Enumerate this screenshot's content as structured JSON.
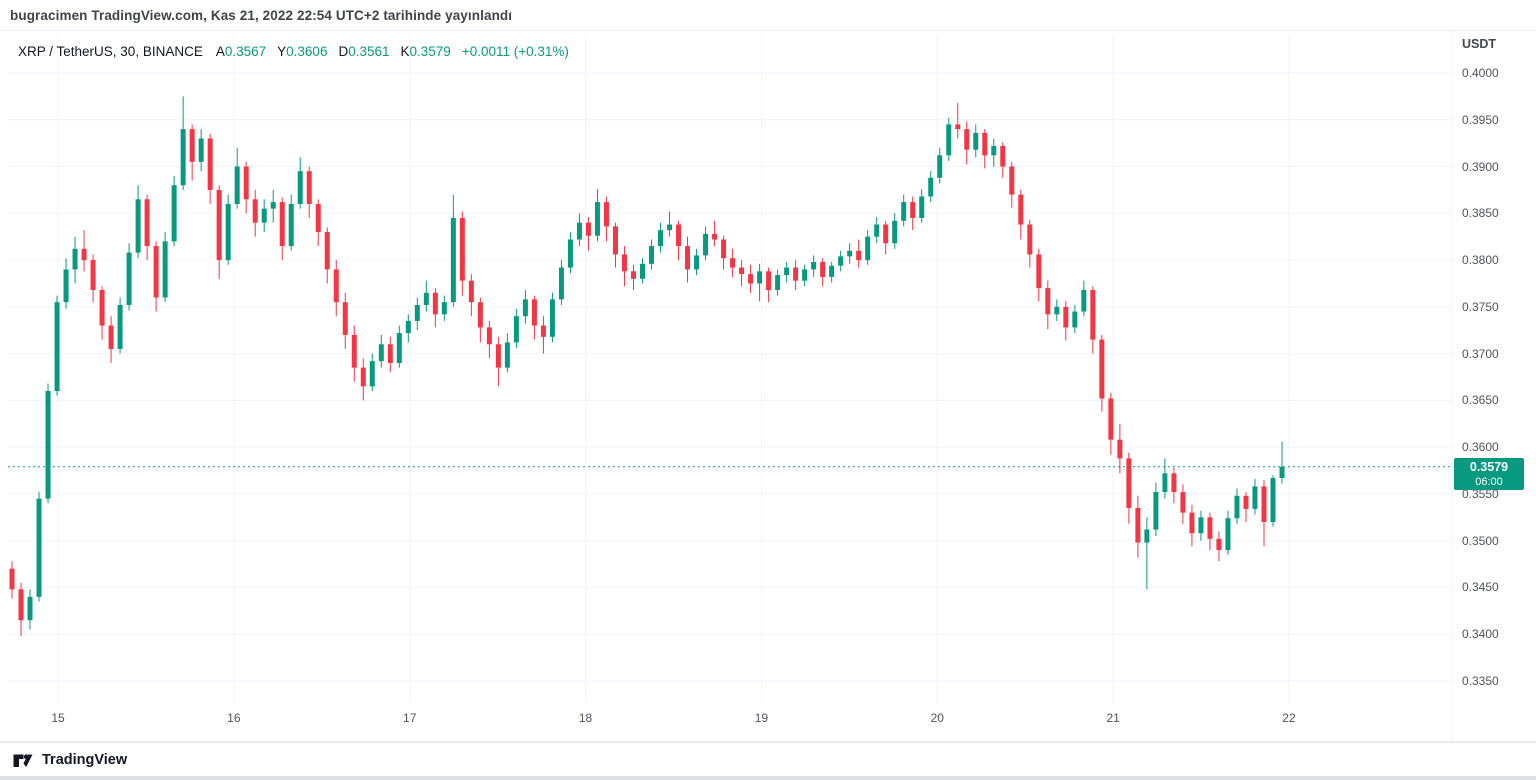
{
  "header": {
    "byline": "bugracimen TradingView.com, Kas 21, 2022 22:54 UTC+2 tarihinde yayınlandı"
  },
  "legend": {
    "symbol_title": "XRP / TetherUS, 30, BINANCE",
    "ohlc": [
      {
        "label": "A",
        "value": "0.3567"
      },
      {
        "label": "Y",
        "value": "0.3606"
      },
      {
        "label": "D",
        "value": "0.3561"
      },
      {
        "label": "K",
        "value": "0.3579"
      }
    ],
    "change": "+0.0011 (+0.31%)"
  },
  "price_scale": {
    "currency_label": "USDT",
    "labels": [
      "0.4000",
      "0.3950",
      "0.3900",
      "0.3850",
      "0.3800",
      "0.3750",
      "0.3700",
      "0.3650",
      "0.3600",
      "0.3550",
      "0.3500",
      "0.3450",
      "0.3400",
      "0.3350"
    ],
    "last_price_badge": {
      "price": "0.3579",
      "countdown": "06:00"
    }
  },
  "footer": {
    "brand": "TradingView"
  },
  "colors": {
    "up": "#089981",
    "down": "#f23645",
    "grid": "#f0f3fa",
    "axis_text": "#50535e",
    "text": "#131722",
    "badge_bg": "#089981"
  },
  "chart_data": {
    "type": "candlestick",
    "title": "XRP / TetherUS, 30, BINANCE",
    "symbol": "XRP/USDT",
    "interval": "30",
    "exchange": "BINANCE",
    "quote_currency": "USDT",
    "price_axis": {
      "min": 0.335,
      "max": 0.4,
      "step": 0.005
    },
    "x_labels": [
      "15",
      "16",
      "17",
      "18",
      "19",
      "20",
      "21",
      "22"
    ],
    "last_price": 0.3579,
    "grid": true,
    "candles": [
      [
        0.347,
        0.3478,
        0.3438,
        0.3448
      ],
      [
        0.3448,
        0.3455,
        0.3398,
        0.3415
      ],
      [
        0.3415,
        0.3448,
        0.3405,
        0.344
      ],
      [
        0.344,
        0.3552,
        0.3435,
        0.3545
      ],
      [
        0.3545,
        0.3668,
        0.354,
        0.366
      ],
      [
        0.366,
        0.3762,
        0.3655,
        0.3755
      ],
      [
        0.3755,
        0.3802,
        0.3748,
        0.379
      ],
      [
        0.379,
        0.3825,
        0.3775,
        0.3812
      ],
      [
        0.3812,
        0.3832,
        0.3788,
        0.38
      ],
      [
        0.38,
        0.3806,
        0.3755,
        0.3768
      ],
      [
        0.3768,
        0.3772,
        0.3715,
        0.373
      ],
      [
        0.373,
        0.374,
        0.369,
        0.3705
      ],
      [
        0.3705,
        0.376,
        0.37,
        0.3752
      ],
      [
        0.3752,
        0.3818,
        0.3746,
        0.3808
      ],
      [
        0.3808,
        0.388,
        0.3802,
        0.3865
      ],
      [
        0.3865,
        0.387,
        0.38,
        0.3815
      ],
      [
        0.3815,
        0.382,
        0.3745,
        0.376
      ],
      [
        0.376,
        0.383,
        0.3755,
        0.382
      ],
      [
        0.382,
        0.389,
        0.3815,
        0.388
      ],
      [
        0.388,
        0.3975,
        0.3875,
        0.394
      ],
      [
        0.394,
        0.3945,
        0.3885,
        0.3905
      ],
      [
        0.3905,
        0.394,
        0.3895,
        0.393
      ],
      [
        0.393,
        0.3935,
        0.386,
        0.3875
      ],
      [
        0.3875,
        0.388,
        0.378,
        0.38
      ],
      [
        0.38,
        0.387,
        0.3795,
        0.386
      ],
      [
        0.386,
        0.392,
        0.3855,
        0.39
      ],
      [
        0.39,
        0.3905,
        0.385,
        0.3865
      ],
      [
        0.3865,
        0.3875,
        0.3825,
        0.384
      ],
      [
        0.384,
        0.3865,
        0.383,
        0.3855
      ],
      [
        0.3855,
        0.3875,
        0.384,
        0.3862
      ],
      [
        0.3862,
        0.3867,
        0.38,
        0.3815
      ],
      [
        0.3815,
        0.387,
        0.381,
        0.386
      ],
      [
        0.386,
        0.391,
        0.3855,
        0.3895
      ],
      [
        0.3895,
        0.39,
        0.3845,
        0.386
      ],
      [
        0.386,
        0.3865,
        0.3815,
        0.383
      ],
      [
        0.383,
        0.3835,
        0.3775,
        0.379
      ],
      [
        0.379,
        0.38,
        0.374,
        0.3755
      ],
      [
        0.3755,
        0.3765,
        0.3705,
        0.372
      ],
      [
        0.372,
        0.373,
        0.367,
        0.3685
      ],
      [
        0.3685,
        0.3695,
        0.365,
        0.3665
      ],
      [
        0.3665,
        0.37,
        0.366,
        0.3692
      ],
      [
        0.3692,
        0.372,
        0.3685,
        0.371
      ],
      [
        0.371,
        0.3718,
        0.368,
        0.369
      ],
      [
        0.369,
        0.373,
        0.3685,
        0.3722
      ],
      [
        0.3722,
        0.3742,
        0.3712,
        0.3735
      ],
      [
        0.3735,
        0.376,
        0.3725,
        0.3752
      ],
      [
        0.3752,
        0.3778,
        0.3745,
        0.3765
      ],
      [
        0.3765,
        0.377,
        0.3728,
        0.3742
      ],
      [
        0.3742,
        0.3762,
        0.3735,
        0.3755
      ],
      [
        0.3755,
        0.387,
        0.375,
        0.3845
      ],
      [
        0.3845,
        0.3852,
        0.3762,
        0.3778
      ],
      [
        0.3778,
        0.3785,
        0.374,
        0.3755
      ],
      [
        0.3755,
        0.376,
        0.3712,
        0.3728
      ],
      [
        0.3728,
        0.3735,
        0.3695,
        0.371
      ],
      [
        0.371,
        0.3718,
        0.3665,
        0.3685
      ],
      [
        0.3685,
        0.3722,
        0.368,
        0.3712
      ],
      [
        0.3712,
        0.3748,
        0.3706,
        0.374
      ],
      [
        0.374,
        0.3768,
        0.3732,
        0.3758
      ],
      [
        0.3758,
        0.3762,
        0.3715,
        0.373
      ],
      [
        0.373,
        0.374,
        0.37,
        0.3718
      ],
      [
        0.3718,
        0.3765,
        0.3712,
        0.3758
      ],
      [
        0.3758,
        0.38,
        0.3752,
        0.3792
      ],
      [
        0.3792,
        0.383,
        0.3786,
        0.3822
      ],
      [
        0.3822,
        0.385,
        0.3815,
        0.384
      ],
      [
        0.384,
        0.3846,
        0.381,
        0.3826
      ],
      [
        0.3826,
        0.3876,
        0.382,
        0.3862
      ],
      [
        0.3862,
        0.3868,
        0.382,
        0.3836
      ],
      [
        0.3836,
        0.384,
        0.3792,
        0.3806
      ],
      [
        0.3806,
        0.3815,
        0.3772,
        0.3788
      ],
      [
        0.3788,
        0.3795,
        0.3768,
        0.378
      ],
      [
        0.378,
        0.3802,
        0.3775,
        0.3796
      ],
      [
        0.3796,
        0.3822,
        0.379,
        0.3815
      ],
      [
        0.3815,
        0.384,
        0.3808,
        0.3832
      ],
      [
        0.3832,
        0.3852,
        0.3825,
        0.3838
      ],
      [
        0.3838,
        0.3842,
        0.38,
        0.3815
      ],
      [
        0.3815,
        0.3825,
        0.3776,
        0.379
      ],
      [
        0.379,
        0.3812,
        0.3784,
        0.3805
      ],
      [
        0.3805,
        0.3836,
        0.38,
        0.3828
      ],
      [
        0.3828,
        0.3842,
        0.3815,
        0.3822
      ],
      [
        0.3822,
        0.3826,
        0.379,
        0.3802
      ],
      [
        0.3802,
        0.3812,
        0.3782,
        0.3792
      ],
      [
        0.3792,
        0.38,
        0.3772,
        0.3785
      ],
      [
        0.3785,
        0.3795,
        0.3765,
        0.3775
      ],
      [
        0.3775,
        0.3796,
        0.3756,
        0.3788
      ],
      [
        0.3788,
        0.3792,
        0.3755,
        0.3768
      ],
      [
        0.3768,
        0.379,
        0.3762,
        0.3784
      ],
      [
        0.3784,
        0.3798,
        0.3776,
        0.3792
      ],
      [
        0.3792,
        0.38,
        0.3768,
        0.3778
      ],
      [
        0.3778,
        0.3795,
        0.3772,
        0.379
      ],
      [
        0.379,
        0.3805,
        0.3782,
        0.3798
      ],
      [
        0.3798,
        0.3802,
        0.3772,
        0.3782
      ],
      [
        0.3782,
        0.3798,
        0.3776,
        0.3794
      ],
      [
        0.3794,
        0.381,
        0.3788,
        0.3804
      ],
      [
        0.3804,
        0.3818,
        0.3796,
        0.381
      ],
      [
        0.381,
        0.3822,
        0.3792,
        0.38
      ],
      [
        0.38,
        0.3832,
        0.3795,
        0.3825
      ],
      [
        0.3825,
        0.3846,
        0.3818,
        0.3838
      ],
      [
        0.3838,
        0.3842,
        0.3806,
        0.3818
      ],
      [
        0.3818,
        0.385,
        0.3812,
        0.3842
      ],
      [
        0.3842,
        0.387,
        0.3836,
        0.3862
      ],
      [
        0.3862,
        0.3868,
        0.3832,
        0.3845
      ],
      [
        0.3845,
        0.3876,
        0.384,
        0.3868
      ],
      [
        0.3868,
        0.3895,
        0.3862,
        0.3888
      ],
      [
        0.3888,
        0.392,
        0.3882,
        0.3912
      ],
      [
        0.3912,
        0.3952,
        0.3906,
        0.3945
      ],
      [
        0.3945,
        0.3968,
        0.393,
        0.394
      ],
      [
        0.394,
        0.3948,
        0.3902,
        0.3918
      ],
      [
        0.3918,
        0.3945,
        0.391,
        0.3936
      ],
      [
        0.3936,
        0.394,
        0.3898,
        0.3912
      ],
      [
        0.3912,
        0.393,
        0.39,
        0.3922
      ],
      [
        0.3922,
        0.3926,
        0.3888,
        0.39
      ],
      [
        0.39,
        0.3905,
        0.3856,
        0.387
      ],
      [
        0.387,
        0.3875,
        0.3822,
        0.3838
      ],
      [
        0.3838,
        0.3843,
        0.3792,
        0.3806
      ],
      [
        0.3806,
        0.3812,
        0.3756,
        0.377
      ],
      [
        0.377,
        0.3778,
        0.3726,
        0.3742
      ],
      [
        0.3742,
        0.3758,
        0.3735,
        0.375
      ],
      [
        0.375,
        0.3756,
        0.3714,
        0.3728
      ],
      [
        0.3728,
        0.3752,
        0.3722,
        0.3745
      ],
      [
        0.3745,
        0.3778,
        0.374,
        0.3768
      ],
      [
        0.3768,
        0.3772,
        0.37,
        0.3715
      ],
      [
        0.3715,
        0.372,
        0.3638,
        0.3652
      ],
      [
        0.3652,
        0.3658,
        0.3592,
        0.3608
      ],
      [
        0.3608,
        0.3625,
        0.3572,
        0.3588
      ],
      [
        0.3588,
        0.3594,
        0.3518,
        0.3535
      ],
      [
        0.3535,
        0.3548,
        0.3482,
        0.3498
      ],
      [
        0.3498,
        0.3525,
        0.3448,
        0.3512
      ],
      [
        0.3512,
        0.3562,
        0.3505,
        0.3552
      ],
      [
        0.3552,
        0.3588,
        0.3545,
        0.3572
      ],
      [
        0.3572,
        0.3578,
        0.354,
        0.3552
      ],
      [
        0.3552,
        0.356,
        0.3518,
        0.353
      ],
      [
        0.353,
        0.3538,
        0.3494,
        0.3508
      ],
      [
        0.3508,
        0.3532,
        0.35,
        0.3525
      ],
      [
        0.3525,
        0.353,
        0.349,
        0.3502
      ],
      [
        0.3502,
        0.351,
        0.3478,
        0.349
      ],
      [
        0.349,
        0.3532,
        0.3485,
        0.3524
      ],
      [
        0.3524,
        0.3556,
        0.3518,
        0.3548
      ],
      [
        0.3548,
        0.3552,
        0.352,
        0.3534
      ],
      [
        0.3534,
        0.3566,
        0.3528,
        0.3558
      ],
      [
        0.3558,
        0.3565,
        0.3494,
        0.352
      ],
      [
        0.352,
        0.357,
        0.3515,
        0.3567
      ],
      [
        0.3567,
        0.3606,
        0.3561,
        0.3579
      ]
    ]
  }
}
